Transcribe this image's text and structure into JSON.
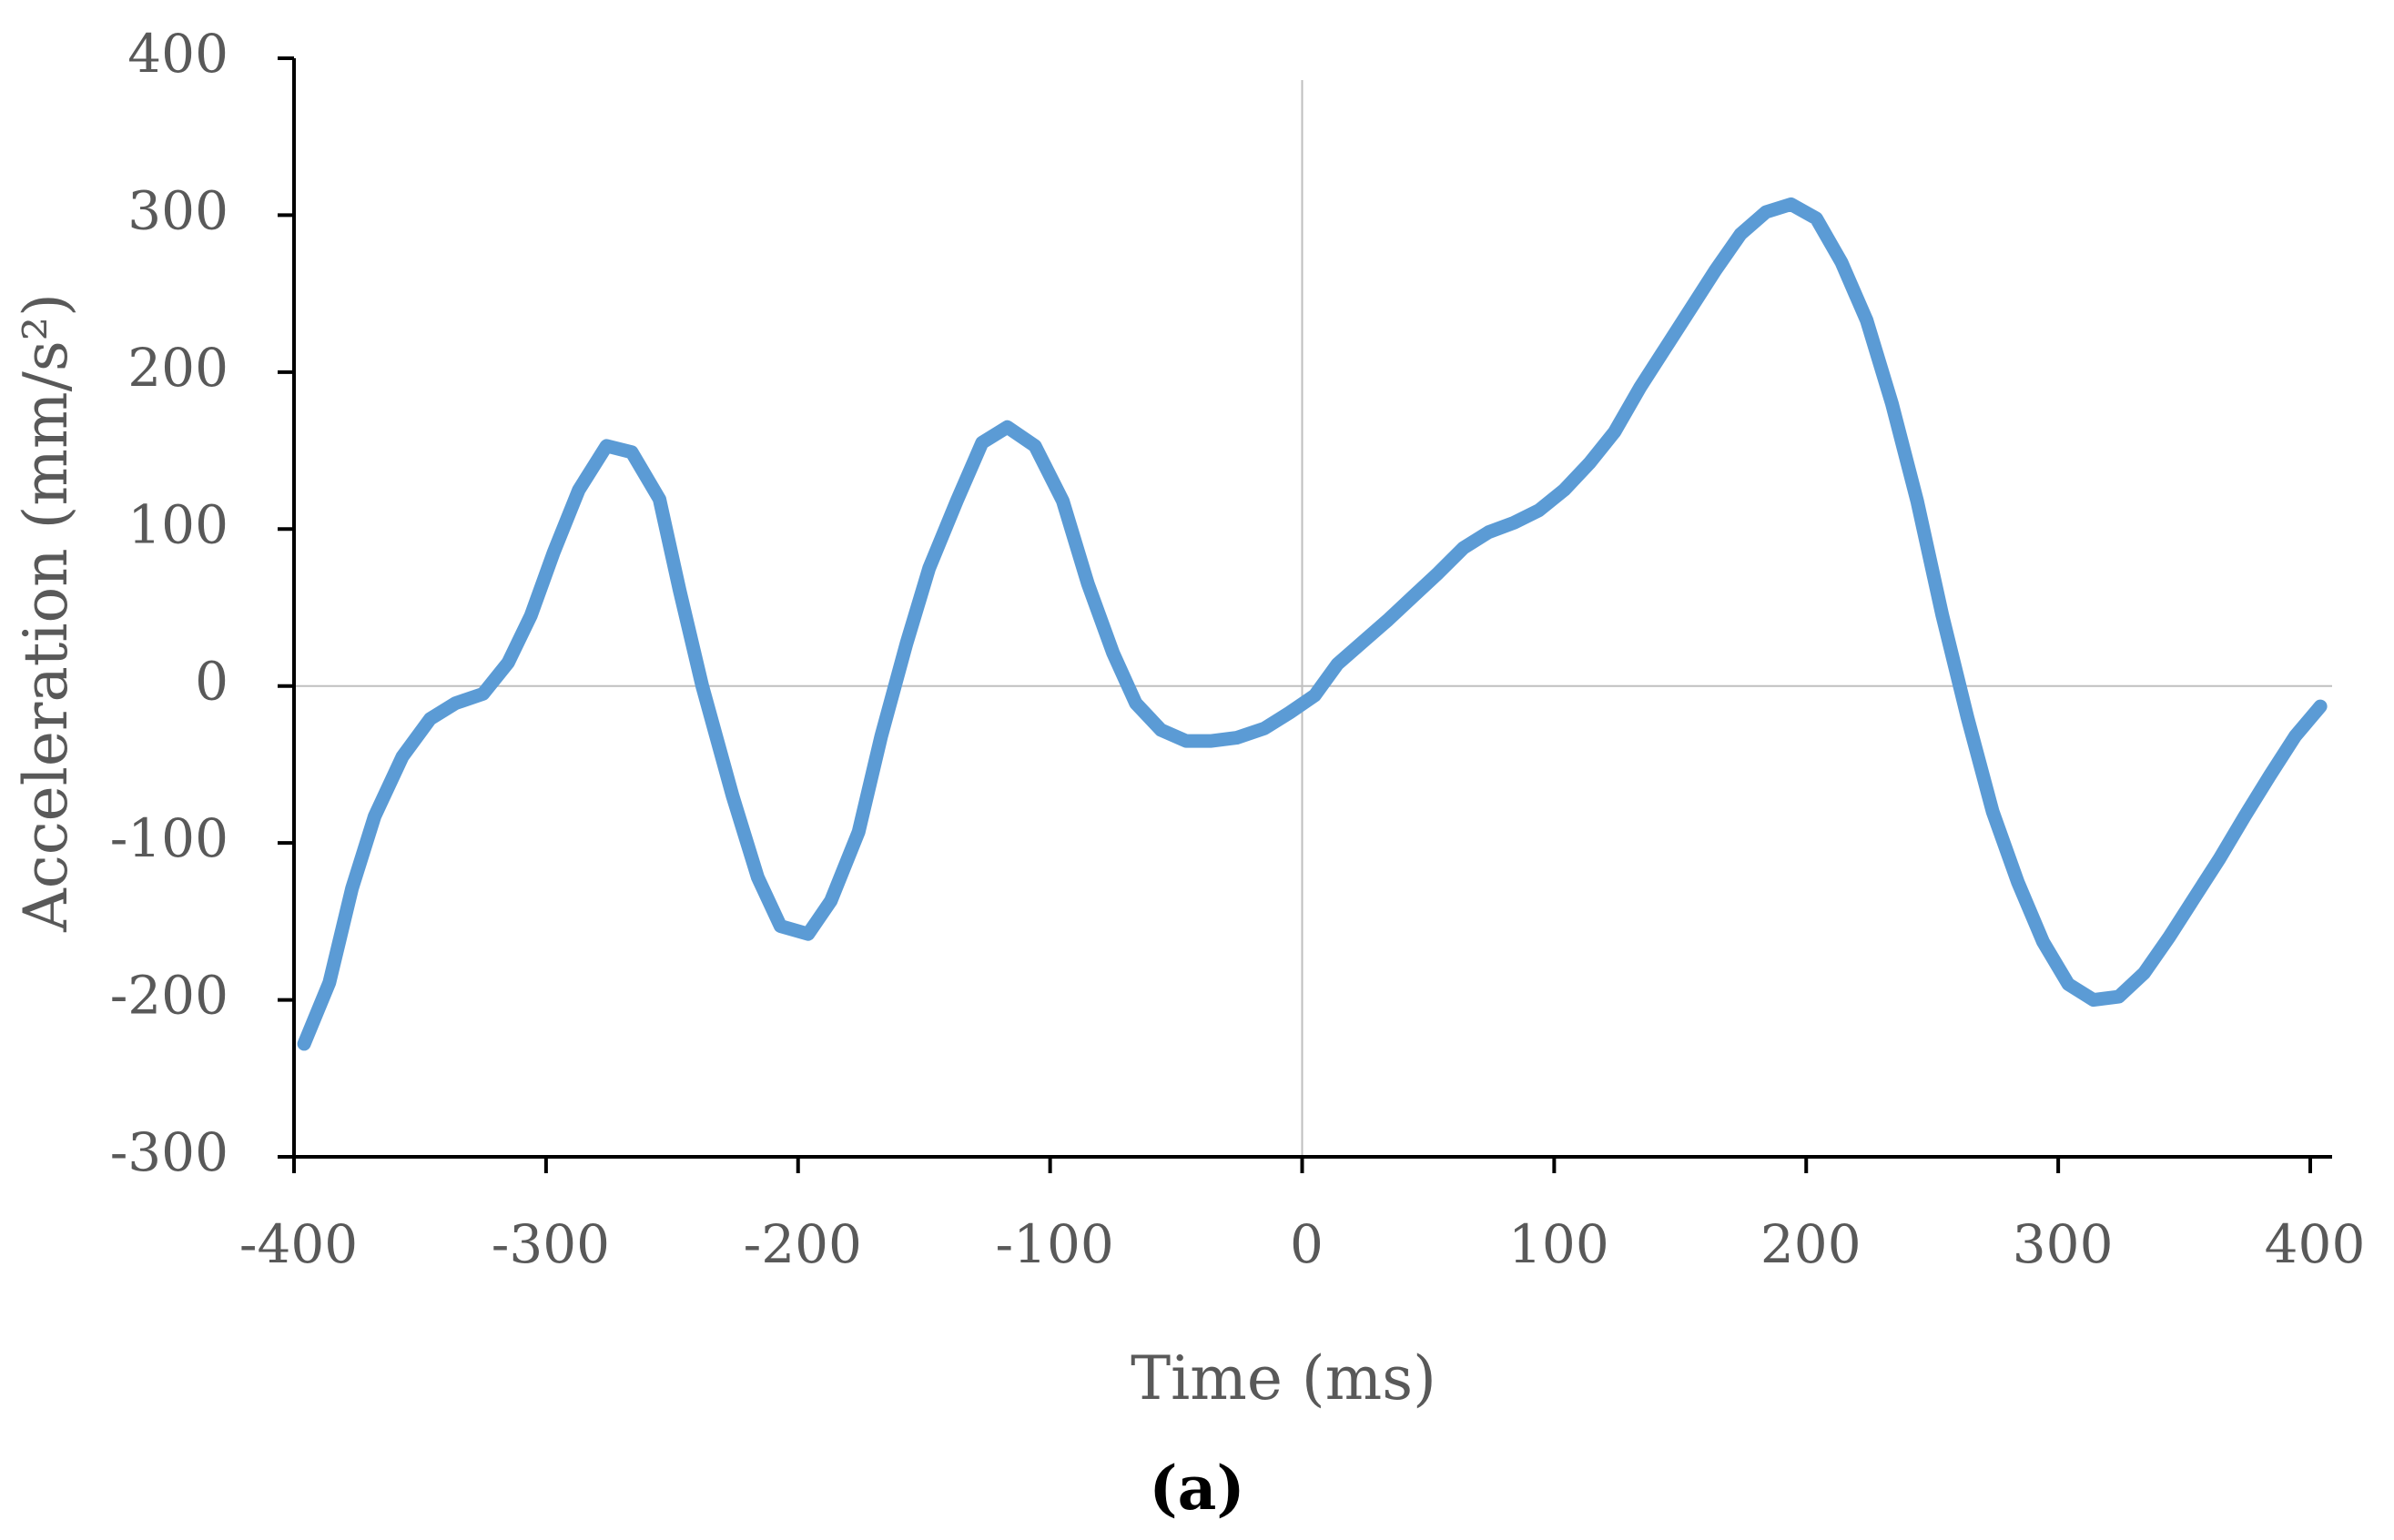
{
  "chart_data": {
    "type": "line",
    "caption": "(a)",
    "x_label": "Time (ms)",
    "y_label": "Acceleration (mm/s²)",
    "color": "#5b9bd5",
    "xlim": [
      -400,
      400
    ],
    "ylim": [
      -300,
      400
    ],
    "xticks": [
      -400,
      -300,
      -200,
      -100,
      0,
      100,
      200,
      300,
      400
    ],
    "yticks": [
      -300,
      -200,
      -100,
      0,
      100,
      200,
      300,
      400
    ],
    "x": [
      -396,
      -386,
      -377,
      -368,
      -357,
      -346,
      -336,
      -325,
      -315,
      -306,
      -297,
      -287,
      -276,
      -266,
      -255,
      -247,
      -238,
      -226,
      -216,
      -207,
      -196,
      -187,
      -176,
      -167,
      -157,
      -148,
      -137,
      -127,
      -117,
      -106,
      -95,
      -85,
      -75,
      -66,
      -56,
      -46,
      -36,
      -26,
      -15,
      -5,
      5,
      14,
      24,
      34,
      44,
      54,
      64,
      74,
      84,
      94,
      104,
      114,
      124,
      134,
      144,
      154,
      164,
      174,
      184,
      194,
      204,
      214,
      224,
      234,
      244,
      254,
      264,
      274,
      284,
      294,
      304,
      314,
      324,
      334,
      344,
      354,
      364,
      374,
      384,
      394,
      404
    ],
    "values": [
      -228,
      -189,
      -129,
      -83,
      -45,
      -21,
      -11,
      -5,
      15,
      45,
      85,
      125,
      153,
      149,
      119,
      61,
      0,
      -70,
      -122,
      -153,
      -158,
      -137,
      -93,
      -32,
      27,
      75,
      118,
      155,
      165,
      153,
      118,
      65,
      21,
      -11,
      -28,
      -35,
      -35,
      -33,
      -27,
      -17,
      -6,
      14,
      28,
      42,
      57,
      72,
      88,
      98,
      104,
      112,
      125,
      142,
      162,
      190,
      215,
      240,
      265,
      288,
      302,
      307,
      298,
      270,
      233,
      180,
      118,
      45,
      -20,
      -80,
      -125,
      -163,
      -190,
      -200,
      -198,
      -183,
      -160,
      -135,
      -110,
      -83,
      -57,
      -32,
      -13
    ]
  }
}
